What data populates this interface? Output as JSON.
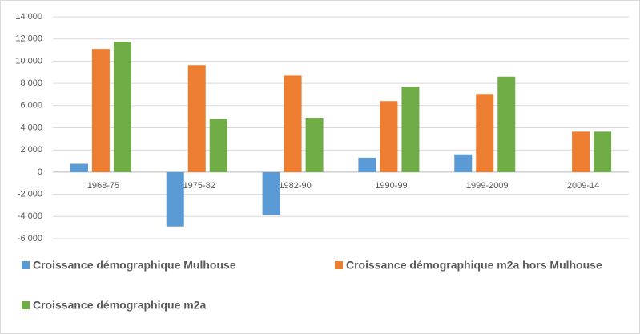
{
  "chart_data": {
    "type": "bar",
    "categories": [
      "1968-75",
      "1975-82",
      "1982-90",
      "1990-99",
      "1999-2009",
      "2009-14"
    ],
    "series": [
      {
        "name": "Croissance démographique Mulhouse",
        "color": "#5b9bd5",
        "values": [
          750,
          -4900,
          -3850,
          1300,
          1600,
          0
        ]
      },
      {
        "name": "Croissance démographique m2a hors Mulhouse",
        "color": "#ed7d31",
        "values": [
          11100,
          9650,
          8700,
          6400,
          7050,
          3650
        ]
      },
      {
        "name": "Croissance démographique m2a",
        "color": "#70ad47",
        "values": [
          11750,
          4800,
          4900,
          7700,
          8600,
          3650
        ]
      }
    ],
    "ylim": [
      -6000,
      14000
    ],
    "yticks": [
      {
        "value": -6000,
        "label": "-6 000"
      },
      {
        "value": -4000,
        "label": "-4 000"
      },
      {
        "value": -2000,
        "label": "-2 000"
      },
      0,
      {
        "value": 2000,
        "label": "2 000"
      },
      {
        "value": 4000,
        "label": "4 000"
      },
      {
        "value": 6000,
        "label": "6 000"
      },
      {
        "value": 8000,
        "label": "8 000"
      },
      {
        "value": 10000,
        "label": "10 000"
      },
      {
        "value": 12000,
        "label": "12 000"
      },
      {
        "value": 14000,
        "label": "14 000"
      }
    ],
    "grid": true,
    "legend": "bottom"
  }
}
